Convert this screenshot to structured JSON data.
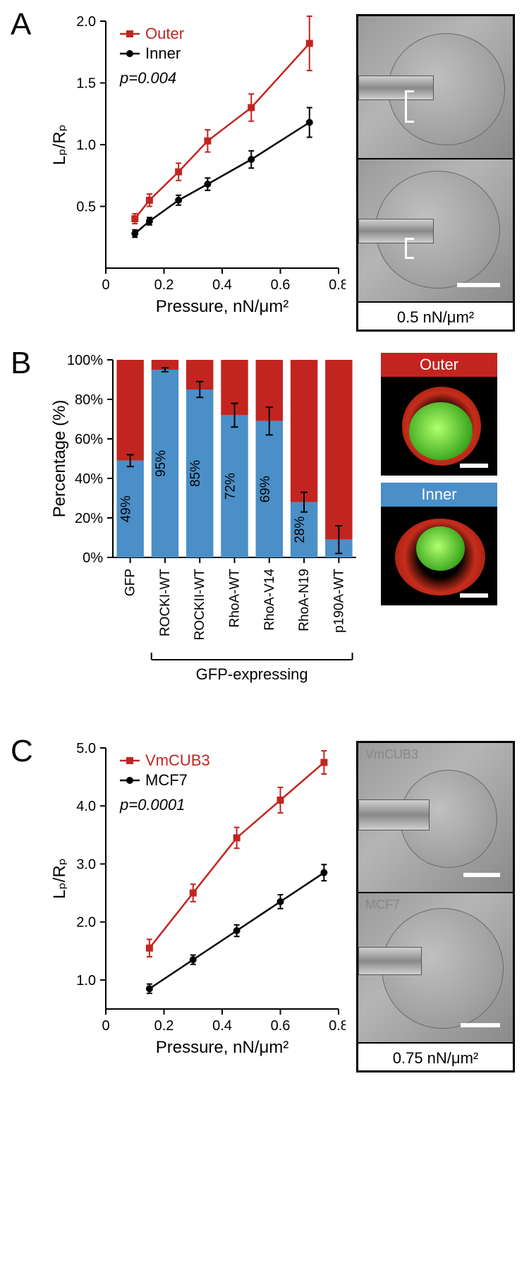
{
  "colors": {
    "outer_red": "#c22520",
    "inner_black": "#000000",
    "bar_blue": "#4a8fc7",
    "axis": "#000000",
    "background": "#ffffff"
  },
  "panelA": {
    "label": "A",
    "chart": {
      "type": "line",
      "xlabel": "Pressure, nN/μm²",
      "ylabel": "Lₚ/Rₚ",
      "xlabel_sub": "p",
      "ylabel_sub": "p",
      "xlim": [
        0,
        0.8
      ],
      "ylim": [
        0,
        2.0
      ],
      "xticks": [
        0,
        0.2,
        0.4,
        0.6,
        0.8
      ],
      "yticks": [
        0.5,
        1.0,
        1.5,
        2.0
      ],
      "xtick_labels": [
        "0",
        "0.2",
        "0.4",
        "0.6",
        "0.8"
      ],
      "ytick_labels": [
        "0.5",
        "1.0",
        "1.5",
        "2.0"
      ],
      "legend": [
        {
          "label": "Outer",
          "color": "#c22520",
          "marker": "square"
        },
        {
          "label": "Inner",
          "color": "#000000",
          "marker": "circle"
        }
      ],
      "pvalue_label": "p=0.004",
      "series": {
        "outer": {
          "color": "#c22520",
          "marker": "square",
          "x": [
            0.1,
            0.15,
            0.25,
            0.35,
            0.5,
            0.7
          ],
          "y": [
            0.4,
            0.55,
            0.78,
            1.03,
            1.3,
            1.82
          ],
          "err": [
            0.04,
            0.05,
            0.07,
            0.09,
            0.11,
            0.22
          ]
        },
        "inner": {
          "color": "#000000",
          "marker": "circle",
          "x": [
            0.1,
            0.15,
            0.25,
            0.35,
            0.5,
            0.7
          ],
          "y": [
            0.28,
            0.38,
            0.55,
            0.68,
            0.88,
            1.18
          ],
          "err": [
            0.03,
            0.03,
            0.04,
            0.05,
            0.07,
            0.12
          ]
        }
      },
      "title_fontsize": 24,
      "tick_fontsize": 20,
      "line_width": 2.5,
      "marker_size": 6
    },
    "image_caption": "0.5 nN/μm²"
  },
  "panelB": {
    "label": "B",
    "chart": {
      "type": "stacked-bar",
      "ylabel": "Percentage (%)",
      "ylim": [
        0,
        100
      ],
      "yticks": [
        0,
        20,
        40,
        60,
        80,
        100
      ],
      "ytick_labels": [
        "0%",
        "20%",
        "40%",
        "60%",
        "80%",
        "100%"
      ],
      "categories": [
        "GFP",
        "ROCKI-WT",
        "ROCKII-WT",
        "RhoA-WT",
        "RhoA-V14",
        "RhoA-N19",
        "p190A-WT"
      ],
      "inner_pct": [
        49,
        95,
        85,
        72,
        69,
        28,
        9
      ],
      "inner_err": [
        3,
        1,
        4,
        6,
        7,
        5,
        7
      ],
      "inner_show_label": [
        true,
        true,
        true,
        true,
        true,
        true,
        false
      ],
      "group_bracket_label": "GFP-expressing",
      "colors": {
        "inner": "#4a8fc7",
        "outer": "#c22520"
      },
      "bar_width": 0.78,
      "tick_fontsize": 20,
      "label_fontsize": 19
    },
    "side_labels": {
      "outer": "Outer",
      "inner": "Inner"
    },
    "side_colors": {
      "outer": "#c22520",
      "inner": "#4a8fc7"
    }
  },
  "panelC": {
    "label": "C",
    "chart": {
      "type": "line",
      "xlabel": "Pressure, nN/μm²",
      "ylabel": "Lₚ/Rₚ",
      "xlim": [
        0,
        0.8
      ],
      "ylim": [
        0.5,
        5.0
      ],
      "xticks": [
        0,
        0.2,
        0.4,
        0.6,
        0.8
      ],
      "yticks": [
        1.0,
        2.0,
        3.0,
        4.0,
        5.0
      ],
      "xtick_labels": [
        "0",
        "0.2",
        "0.4",
        "0.6",
        "0.8"
      ],
      "ytick_labels": [
        "1.0",
        "2.0",
        "3.0",
        "4.0",
        "5.0"
      ],
      "legend": [
        {
          "label": "VmCUB3",
          "color": "#c22520",
          "marker": "square"
        },
        {
          "label": "MCF7",
          "color": "#000000",
          "marker": "circle"
        }
      ],
      "pvalue_label": "p=0.0001",
      "series": {
        "vmcub3": {
          "color": "#c22520",
          "marker": "square",
          "x": [
            0.15,
            0.3,
            0.45,
            0.6,
            0.75
          ],
          "y": [
            1.55,
            2.5,
            3.45,
            4.1,
            4.75
          ],
          "err": [
            0.15,
            0.15,
            0.18,
            0.22,
            0.2
          ]
        },
        "mcf7": {
          "color": "#000000",
          "marker": "circle",
          "x": [
            0.15,
            0.3,
            0.45,
            0.6,
            0.75
          ],
          "y": [
            0.85,
            1.35,
            1.85,
            2.35,
            2.85
          ],
          "err": [
            0.08,
            0.08,
            0.1,
            0.12,
            0.14
          ]
        }
      },
      "line_width": 2.5,
      "marker_size": 6
    },
    "image_labels": {
      "top": "VmCUB3",
      "bottom": "MCF7"
    },
    "image_caption": "0.75 nN/μm²"
  }
}
